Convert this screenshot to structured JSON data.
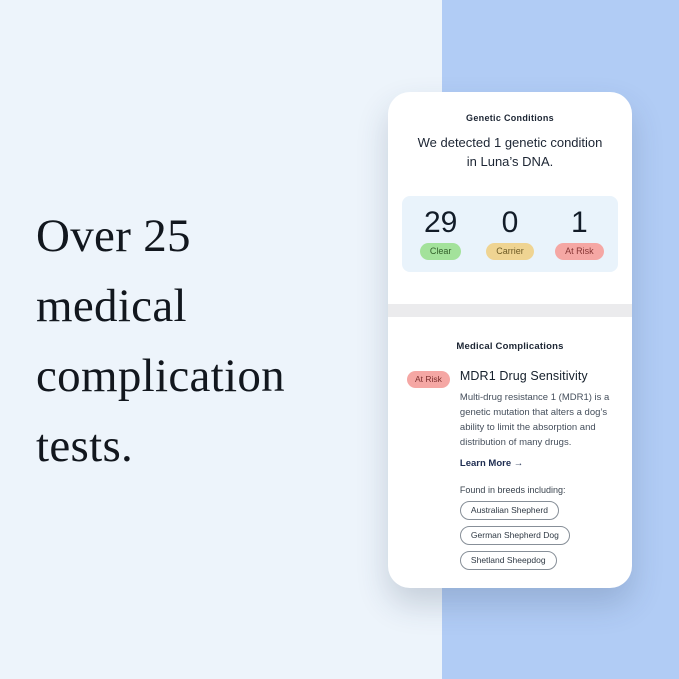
{
  "left_panel": {
    "headline_lines": [
      "Over 25",
      "medical",
      "complication",
      "tests."
    ]
  },
  "phone": {
    "genetic_conditions": {
      "header": "Genetic Conditions",
      "summary_line1": "We detected 1 genetic condition",
      "summary_line2": "in Luna’s DNA.",
      "stats": [
        {
          "value": "29",
          "label": "Clear"
        },
        {
          "value": "0",
          "label": "Carrier"
        },
        {
          "value": "1",
          "label": "At Risk"
        }
      ]
    },
    "medical_complications": {
      "header": "Medical Complications",
      "condition": {
        "badge": "At Risk",
        "title": "MDR1 Drug Sensitivity",
        "description": "Multi-drug resistance 1 (MDR1) is a genetic mutation that alters a dog’s ability to limit the absorption and distribution of many drugs.",
        "learn_more": "Learn More →",
        "breeds_label": "Found in breeds including:",
        "breeds": [
          "Australian Shepherd",
          "German Shepherd Dog",
          "Shetland Sheepdog"
        ]
      }
    }
  },
  "colors": {
    "page_background": "#edf4fb",
    "blue_panel": "#b1ccf5",
    "card_background": "#ffffff",
    "stats_panel_background": "#e9f3fb",
    "clear_pill_bg": "#a3e29b",
    "carrier_pill_bg": "#efd492",
    "at_risk_pill_bg": "#f5a7a4",
    "dark_text": "#1c2533",
    "body_text": "#454f5c",
    "link_text": "#1d2c50",
    "divider": "#ebebed"
  }
}
